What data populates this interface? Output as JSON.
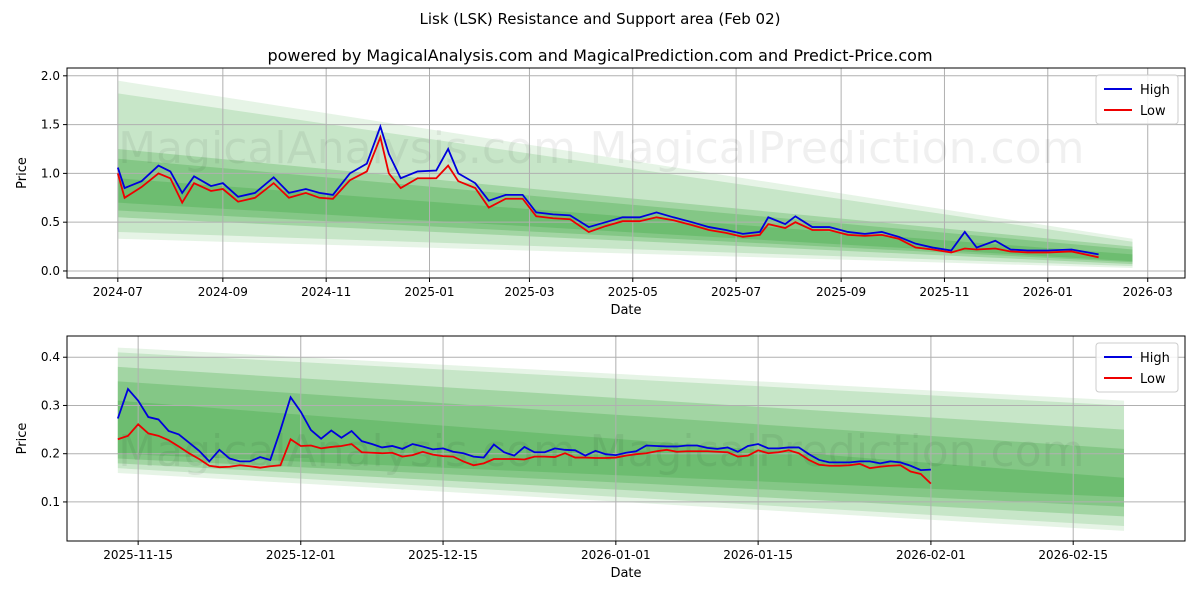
{
  "title": "Lisk (LSK) Resistance and Support area (Feb 02)",
  "subtitle": "powered by MagicalAnalysis.com and MagicalPrediction.com and Predict-Price.com",
  "watermarks": [
    "MagicalAnalysis.com",
    "MagicalPrediction.com"
  ],
  "colors": {
    "high": "#0000dd",
    "low": "#ee0000",
    "band": "#4caf50"
  },
  "chart_data": [
    {
      "type": "line",
      "xlabel": "Date",
      "ylabel": "Price",
      "xlim": [
        "2024-06-01",
        "2026-03-23"
      ],
      "ylim": [
        -0.072,
        2.08
      ],
      "grid": true,
      "legend": "top-right",
      "legend_entries": [
        "High",
        "Low"
      ],
      "xticks": [
        {
          "date": "2024-07-01",
          "label": "2024-07"
        },
        {
          "date": "2024-09-01",
          "label": "2024-09"
        },
        {
          "date": "2024-11-01",
          "label": "2024-11"
        },
        {
          "date": "2025-01-01",
          "label": "2025-01"
        },
        {
          "date": "2025-03-01",
          "label": "2025-03"
        },
        {
          "date": "2025-05-01",
          "label": "2025-05"
        },
        {
          "date": "2025-07-01",
          "label": "2025-07"
        },
        {
          "date": "2025-09-01",
          "label": "2025-09"
        },
        {
          "date": "2025-11-01",
          "label": "2025-11"
        },
        {
          "date": "2026-01-01",
          "label": "2026-01"
        },
        {
          "date": "2026-03-01",
          "label": "2026-03"
        }
      ],
      "yticks": [
        {
          "v": 0,
          "label": "0.0"
        },
        {
          "v": 0.5,
          "label": "0.5"
        },
        {
          "v": 1,
          "label": "1.0"
        },
        {
          "v": 1.5,
          "label": "1.5"
        },
        {
          "v": 2,
          "label": "2.0"
        }
      ],
      "bands": {
        "start": "2024-07-01",
        "end": "2026-02-20",
        "levels": [
          [
            0.33,
            1.95,
            0.03,
            0.33
          ],
          [
            0.4,
            1.82,
            0.05,
            0.3
          ],
          [
            0.55,
            1.25,
            0.07,
            0.25
          ],
          [
            0.62,
            1.15,
            0.09,
            0.22
          ],
          [
            0.7,
            0.95,
            0.1,
            0.17
          ]
        ]
      },
      "dates": [
        "2024-07-01",
        "2024-07-05",
        "2024-07-15",
        "2024-07-25",
        "2024-08-01",
        "2024-08-08",
        "2024-08-15",
        "2024-08-25",
        "2024-09-01",
        "2024-09-10",
        "2024-09-20",
        "2024-10-01",
        "2024-10-10",
        "2024-10-20",
        "2024-10-28",
        "2024-11-05",
        "2024-11-15",
        "2024-11-25",
        "2024-12-03",
        "2024-12-08",
        "2024-12-15",
        "2024-12-25",
        "2025-01-05",
        "2025-01-12",
        "2025-01-18",
        "2025-01-28",
        "2025-02-05",
        "2025-02-15",
        "2025-02-25",
        "2025-03-05",
        "2025-03-15",
        "2025-03-25",
        "2025-04-05",
        "2025-04-15",
        "2025-04-25",
        "2025-05-05",
        "2025-05-15",
        "2025-05-25",
        "2025-06-05",
        "2025-06-15",
        "2025-06-25",
        "2025-07-05",
        "2025-07-15",
        "2025-07-20",
        "2025-07-30",
        "2025-08-05",
        "2025-08-15",
        "2025-08-25",
        "2025-09-05",
        "2025-09-15",
        "2025-09-25",
        "2025-10-05",
        "2025-10-15",
        "2025-10-25",
        "2025-11-05",
        "2025-11-13",
        "2025-11-20",
        "2025-12-01",
        "2025-12-10",
        "2025-12-20",
        "2026-01-01",
        "2026-01-15",
        "2026-01-31"
      ],
      "series": [
        {
          "name": "High",
          "values": [
            1.06,
            0.85,
            0.92,
            1.08,
            1.02,
            0.8,
            0.97,
            0.87,
            0.9,
            0.76,
            0.8,
            0.96,
            0.8,
            0.84,
            0.8,
            0.78,
            1.0,
            1.1,
            1.48,
            1.2,
            0.95,
            1.02,
            1.03,
            1.25,
            1.0,
            0.9,
            0.72,
            0.78,
            0.78,
            0.6,
            0.58,
            0.57,
            0.45,
            0.5,
            0.55,
            0.55,
            0.6,
            0.55,
            0.5,
            0.45,
            0.42,
            0.38,
            0.4,
            0.55,
            0.48,
            0.56,
            0.45,
            0.45,
            0.4,
            0.38,
            0.4,
            0.35,
            0.28,
            0.24,
            0.21,
            0.4,
            0.24,
            0.31,
            0.22,
            0.21,
            0.21,
            0.22,
            0.17
          ]
        },
        {
          "name": "Low",
          "values": [
            1.0,
            0.75,
            0.86,
            1.0,
            0.95,
            0.7,
            0.9,
            0.82,
            0.84,
            0.71,
            0.75,
            0.9,
            0.75,
            0.8,
            0.75,
            0.74,
            0.93,
            1.02,
            1.37,
            1.0,
            0.85,
            0.95,
            0.95,
            1.08,
            0.92,
            0.85,
            0.65,
            0.74,
            0.74,
            0.56,
            0.54,
            0.53,
            0.4,
            0.46,
            0.51,
            0.51,
            0.55,
            0.52,
            0.47,
            0.42,
            0.39,
            0.35,
            0.37,
            0.48,
            0.44,
            0.5,
            0.42,
            0.42,
            0.37,
            0.36,
            0.37,
            0.33,
            0.24,
            0.22,
            0.19,
            0.23,
            0.22,
            0.23,
            0.2,
            0.19,
            0.19,
            0.2,
            0.14
          ]
        }
      ]
    },
    {
      "type": "line",
      "xlabel": "Date",
      "ylabel": "Price",
      "xlim": [
        "2025-11-08",
        "2026-02-26"
      ],
      "ylim": [
        0.019,
        0.444
      ],
      "grid": true,
      "legend": "top-right",
      "legend_entries": [
        "High",
        "Low"
      ],
      "xticks": [
        {
          "date": "2025-11-15",
          "label": "2025-11-15"
        },
        {
          "date": "2025-12-01",
          "label": "2025-12-01"
        },
        {
          "date": "2025-12-15",
          "label": "2025-12-15"
        },
        {
          "date": "2026-01-01",
          "label": "2026-01-01"
        },
        {
          "date": "2026-01-15",
          "label": "2026-01-15"
        },
        {
          "date": "2026-02-01",
          "label": "2026-02-01"
        },
        {
          "date": "2026-02-15",
          "label": "2026-02-15"
        }
      ],
      "yticks": [
        {
          "v": 0.1,
          "label": "0.1"
        },
        {
          "v": 0.2,
          "label": "0.2"
        },
        {
          "v": 0.3,
          "label": "0.3"
        },
        {
          "v": 0.4,
          "label": "0.4"
        }
      ],
      "bands": {
        "start": "2025-11-13",
        "end": "2026-02-20",
        "levels": [
          [
            0.16,
            0.42,
            0.04,
            0.31
          ],
          [
            0.17,
            0.41,
            0.05,
            0.3
          ],
          [
            0.18,
            0.38,
            0.07,
            0.25
          ],
          [
            0.19,
            0.35,
            0.09,
            0.21
          ],
          [
            0.2,
            0.31,
            0.11,
            0.15
          ]
        ]
      },
      "daily_start": "2025-11-13",
      "series": [
        {
          "name": "High",
          "values": [
            0.273,
            0.334,
            0.31,
            0.276,
            0.271,
            0.247,
            0.24,
            0.223,
            0.206,
            0.184,
            0.208,
            0.19,
            0.184,
            0.184,
            0.193,
            0.187,
            0.249,
            0.317,
            0.287,
            0.249,
            0.231,
            0.248,
            0.233,
            0.247,
            0.226,
            0.22,
            0.213,
            0.216,
            0.21,
            0.22,
            0.215,
            0.209,
            0.211,
            0.204,
            0.201,
            0.194,
            0.192,
            0.219,
            0.203,
            0.196,
            0.214,
            0.203,
            0.203,
            0.211,
            0.208,
            0.207,
            0.196,
            0.206,
            0.199,
            0.197,
            0.202,
            0.205,
            0.217,
            0.216,
            0.215,
            0.215,
            0.217,
            0.217,
            0.212,
            0.21,
            0.213,
            0.204,
            0.216,
            0.22,
            0.211,
            0.211,
            0.213,
            0.213,
            0.199,
            0.187,
            0.182,
            0.182,
            0.182,
            0.184,
            0.184,
            0.18,
            0.184,
            0.182,
            0.175,
            0.166,
            0.167
          ]
        },
        {
          "name": "Low",
          "values": [
            0.23,
            0.237,
            0.261,
            0.242,
            0.237,
            0.228,
            0.215,
            0.201,
            0.189,
            0.175,
            0.172,
            0.173,
            0.176,
            0.174,
            0.171,
            0.174,
            0.176,
            0.23,
            0.216,
            0.217,
            0.211,
            0.214,
            0.216,
            0.22,
            0.203,
            0.202,
            0.201,
            0.202,
            0.194,
            0.197,
            0.204,
            0.198,
            0.195,
            0.194,
            0.184,
            0.176,
            0.18,
            0.189,
            0.189,
            0.189,
            0.188,
            0.194,
            0.194,
            0.193,
            0.201,
            0.192,
            0.192,
            0.191,
            0.191,
            0.192,
            0.196,
            0.199,
            0.201,
            0.205,
            0.208,
            0.204,
            0.205,
            0.205,
            0.205,
            0.204,
            0.203,
            0.194,
            0.196,
            0.207,
            0.201,
            0.203,
            0.207,
            0.201,
            0.187,
            0.177,
            0.175,
            0.175,
            0.176,
            0.179,
            0.17,
            0.173,
            0.175,
            0.176,
            0.163,
            0.158,
            0.138
          ]
        }
      ]
    }
  ]
}
